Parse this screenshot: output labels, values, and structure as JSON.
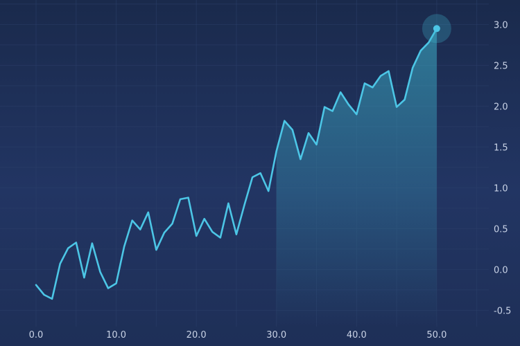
{
  "chart_data": {
    "type": "area",
    "title": "",
    "xlabel": "",
    "ylabel": "",
    "xlim": [
      -4.5,
      56.5
    ],
    "ylim": [
      -0.7,
      3.3
    ],
    "xticks": [
      0,
      10,
      20,
      30,
      40,
      50
    ],
    "xtick_labels": [
      "0.0",
      "10.0",
      "20.0",
      "30.0",
      "40.0",
      "50.0"
    ],
    "yticks": [
      -0.5,
      0,
      0.5,
      1,
      1.5,
      2,
      2.5,
      3
    ],
    "ytick_labels": [
      "-0.5",
      "0.0",
      "0.5",
      "1.0",
      "1.5",
      "2.0",
      "2.5",
      "3.0"
    ],
    "y_axis_position": "right",
    "grid": true,
    "highlight_from_x": 30,
    "colors": {
      "background_top": "#1a2a4c",
      "background_mid": "#223563",
      "line": "#4cc6e6",
      "fill": "#3fb7d0",
      "grid": "#2c3f69",
      "tick_text": "#c9d3e6"
    },
    "series": [
      {
        "x": [
          0,
          1,
          2,
          3,
          4,
          5,
          6,
          7,
          8,
          9,
          10,
          11,
          12,
          13,
          14,
          15,
          16,
          17,
          18,
          19,
          20,
          21,
          22,
          23,
          24,
          25,
          26,
          27,
          28,
          29,
          30,
          31,
          32,
          33,
          34,
          35,
          36,
          37,
          38,
          39,
          40,
          41,
          42,
          43,
          44,
          45,
          46,
          47,
          48,
          49,
          50
        ],
        "values": [
          -0.19,
          -0.31,
          -0.36,
          0.07,
          0.26,
          0.33,
          -0.1,
          0.32,
          -0.03,
          -0.23,
          -0.17,
          0.28,
          0.6,
          0.49,
          0.7,
          0.24,
          0.45,
          0.56,
          0.86,
          0.88,
          0.41,
          0.62,
          0.46,
          0.39,
          0.81,
          0.43,
          0.79,
          1.13,
          1.18,
          0.96,
          1.45,
          1.82,
          1.71,
          1.35,
          1.67,
          1.53,
          1.99,
          1.94,
          2.17,
          2.02,
          1.9,
          2.28,
          2.23,
          2.37,
          2.43,
          1.99,
          2.08,
          2.47,
          2.68,
          2.78,
          2.95
        ]
      }
    ]
  }
}
